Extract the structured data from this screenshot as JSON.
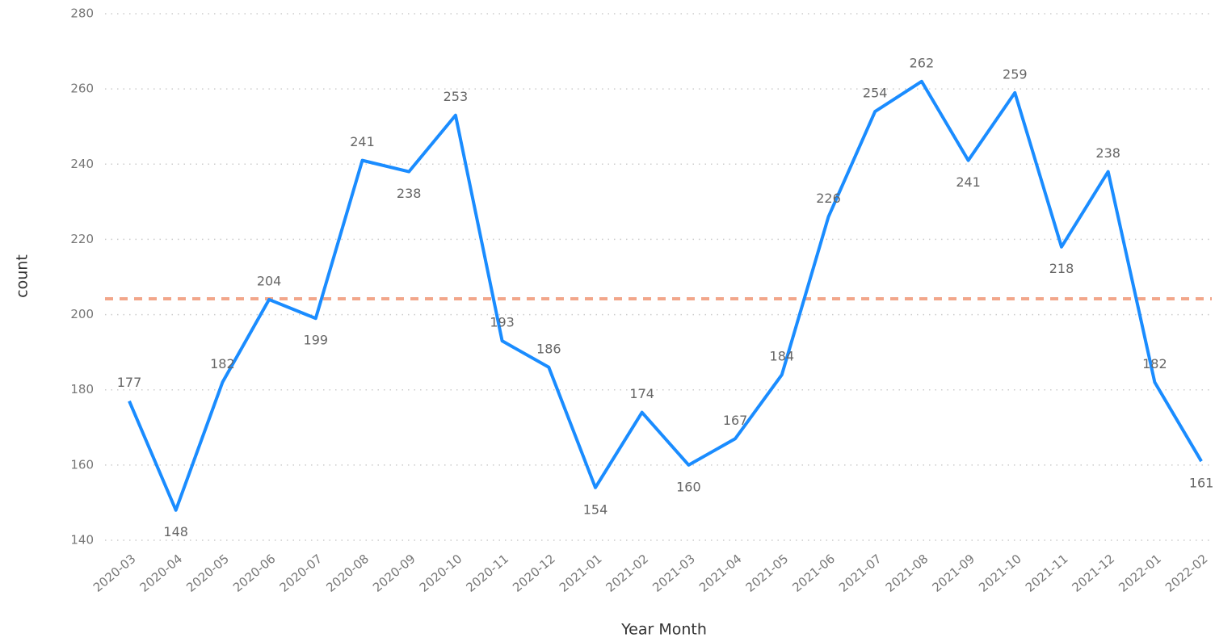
{
  "chart_data": {
    "type": "line",
    "x_label": "Year Month",
    "y_label": "count",
    "categories": [
      "2020-03",
      "2020-04",
      "2020-05",
      "2020-06",
      "2020-07",
      "2020-08",
      "2020-09",
      "2020-10",
      "2020-11",
      "2020-12",
      "2021-01",
      "2021-02",
      "2021-03",
      "2021-04",
      "2021-05",
      "2021-06",
      "2021-07",
      "2021-08",
      "2021-09",
      "2021-10",
      "2021-11",
      "2021-12",
      "2022-01",
      "2022-02"
    ],
    "series": [
      {
        "name": "count",
        "color": "#1a8cff",
        "values": [
          177,
          148,
          182,
          204,
          199,
          241,
          238,
          253,
          193,
          186,
          154,
          174,
          160,
          167,
          184,
          226,
          254,
          262,
          241,
          259,
          218,
          238,
          182,
          161
        ]
      }
    ],
    "average_line": {
      "value": 204.2,
      "color": "#f2a68a"
    },
    "ylim": [
      140,
      280
    ],
    "yticks": [
      140,
      160,
      180,
      200,
      220,
      240,
      260,
      280
    ],
    "grid": true
  }
}
